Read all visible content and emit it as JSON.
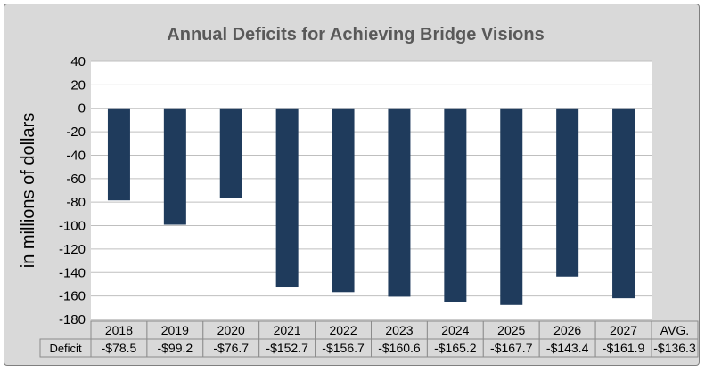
{
  "chart_data": {
    "type": "bar",
    "title": "Annual Deficits for Achieving Bridge Visions",
    "ylabel": "in millions of dollars",
    "xlabel": "",
    "categories": [
      "2018",
      "2019",
      "2020",
      "2021",
      "2022",
      "2023",
      "2024",
      "2025",
      "2026",
      "2027"
    ],
    "series": [
      {
        "name": "Deficit",
        "values": [
          -78.5,
          -99.2,
          -76.7,
          -152.7,
          -156.7,
          -160.6,
          -165.2,
          -167.7,
          -143.4,
          -161.9
        ],
        "labels": [
          "-$78.5",
          "-$99.2",
          "-$76.7",
          "-$152.7",
          "-$156.7",
          "-$160.6",
          "-$165.2",
          "-$167.7",
          "-$143.4",
          "-$161.9"
        ]
      }
    ],
    "yticks": [
      "40",
      "20",
      "0",
      "-20",
      "-40",
      "-60",
      "-80",
      "-100",
      "-120",
      "-140",
      "-160",
      "-180"
    ],
    "ylim": [
      -180,
      40
    ],
    "grid": true,
    "table": {
      "avg_header": "AVG.",
      "avg_value": "-$136.3"
    },
    "colors": {
      "bar": "#1f3b5c",
      "frame": "#d9d9d9",
      "plot": "#ffffff",
      "grid": "#bfbfbf"
    }
  }
}
